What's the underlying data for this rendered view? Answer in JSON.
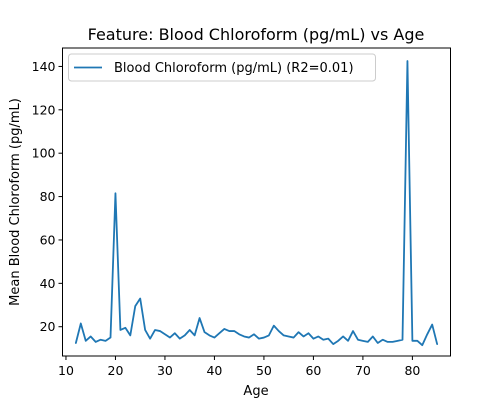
{
  "chart_data": {
    "type": "line",
    "title": "Feature: Blood Chloroform (pg/mL) vs Age",
    "xlabel": "Age",
    "ylabel": "Mean Blood Chloroform (pg/mL)",
    "xlim": [
      9.3,
      87.7
    ],
    "ylim": [
      6.5,
      148.5
    ],
    "x_ticks": [
      10,
      20,
      30,
      40,
      50,
      60,
      70,
      80
    ],
    "y_ticks": [
      20,
      40,
      60,
      80,
      100,
      120,
      140
    ],
    "grid": false,
    "legend_position": "top-left",
    "series": [
      {
        "name": "Blood Chloroform (pg/mL) (R2=0.01)",
        "color": "#1f77b4",
        "x": [
          12,
          13,
          14,
          15,
          16,
          17,
          18,
          19,
          20,
          21,
          22,
          23,
          24,
          25,
          26,
          27,
          28,
          29,
          30,
          31,
          32,
          33,
          34,
          35,
          36,
          37,
          38,
          39,
          40,
          41,
          42,
          43,
          44,
          45,
          46,
          47,
          48,
          49,
          50,
          51,
          52,
          53,
          54,
          55,
          56,
          57,
          58,
          59,
          60,
          61,
          62,
          63,
          64,
          65,
          66,
          67,
          68,
          69,
          70,
          71,
          72,
          73,
          74,
          75,
          76,
          77,
          78,
          79,
          80,
          81,
          82,
          83,
          84,
          85
        ],
        "values": [
          12.5,
          21.5,
          13.5,
          15.5,
          13,
          14,
          13.5,
          15,
          81.5,
          18.5,
          19.5,
          16,
          29.5,
          33,
          18.5,
          14.5,
          18.5,
          18,
          16.5,
          15,
          17,
          14.5,
          16,
          18.5,
          16,
          24,
          17.5,
          16,
          15,
          17,
          19,
          18,
          18,
          16.5,
          15.5,
          15,
          16.5,
          14.5,
          15,
          16,
          20.5,
          18,
          16,
          15.5,
          15,
          17.5,
          15.5,
          17,
          14.5,
          15.5,
          14,
          14.5,
          12,
          13.5,
          15.5,
          13.5,
          18,
          14,
          13.5,
          13,
          15.5,
          12.5,
          14,
          13,
          13,
          13.5,
          14,
          142.5,
          13.5,
          13.5,
          11.5,
          16.5,
          21,
          12
        ]
      }
    ]
  }
}
